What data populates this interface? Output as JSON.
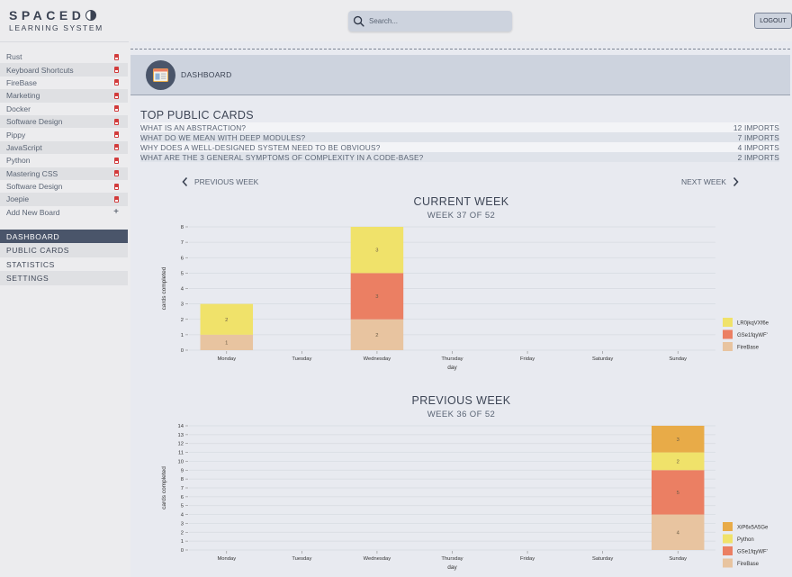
{
  "header": {
    "logo_top": "SPACED",
    "logo_bottom": "LEARNING SYSTEM",
    "search_placeholder": "Search...",
    "logout_label": "LOGOUT"
  },
  "sidebar": {
    "boards": [
      {
        "label": "Rust",
        "icon": "card-icon"
      },
      {
        "label": "Keyboard Shortcuts",
        "icon": "card-icon"
      },
      {
        "label": "FireBase",
        "icon": "card-icon"
      },
      {
        "label": "Marketing",
        "icon": "card-icon"
      },
      {
        "label": "Docker",
        "icon": "card-icon"
      },
      {
        "label": "Software Design",
        "icon": "card-icon"
      },
      {
        "label": "Pippy",
        "icon": "card-icon"
      },
      {
        "label": "JavaScript",
        "icon": "card-icon"
      },
      {
        "label": "Python",
        "icon": "card-icon"
      },
      {
        "label": "Mastering CSS",
        "icon": "card-icon"
      },
      {
        "label": "Software Design",
        "icon": "card-icon"
      },
      {
        "label": "Joepie",
        "icon": "card-icon"
      },
      {
        "label": "Add New Board",
        "icon": "plus-icon"
      }
    ],
    "nav": [
      {
        "label": "DASHBOARD",
        "active": true
      },
      {
        "label": "PUBLIC CARDS",
        "active": false
      },
      {
        "label": "STATISTICS",
        "active": false
      },
      {
        "label": "SETTINGS",
        "active": false
      }
    ]
  },
  "main": {
    "page_title": "DASHBOARD",
    "top_public_cards": {
      "title": "TOP PUBLIC CARDS",
      "rows": [
        {
          "question": "WHAT IS AN ABSTRACTION?",
          "imports": "12 IMPORTS"
        },
        {
          "question": "WHAT DO WE MEAN WITH DEEP MODULES?",
          "imports": "7 IMPORTS"
        },
        {
          "question": "WHY DOES A WELL-DESIGNED SYSTEM NEED TO BE OBVIOUS?",
          "imports": "4 IMPORTS"
        },
        {
          "question": "WHAT ARE THE 3 GENERAL SYMPTOMS OF COMPLEXITY IN A CODE-BASE?",
          "imports": "2 IMPORTS"
        }
      ]
    },
    "prev_week_label": "PREVIOUS WEEK",
    "next_week_label": "NEXT WEEK",
    "current_week_title": "CURRENT WEEK",
    "current_week_sub": "WEEK 37 OF 52",
    "previous_week_title": "PREVIOUS WEEK",
    "previous_week_sub": "WEEK 36 OF 52"
  },
  "colors": {
    "accent": "#4a556a",
    "FireBase": "#e8c4a0",
    "GSe1fqyWF": "#eb7f63",
    "LR0jkqVXf6e": "#f0e26a",
    "Python": "#f0e26a",
    "XiP6x5A5Ge": "#e8ab48"
  },
  "chart_data": [
    {
      "type": "bar",
      "stacked": true,
      "title": "",
      "xlabel": "day",
      "ylabel": "cards completed",
      "categories": [
        "Monday",
        "Tuesday",
        "Wednesday",
        "Thursday",
        "Friday",
        "Saturday",
        "Sunday"
      ],
      "ylim": [
        0,
        8
      ],
      "yticks": [
        0,
        1,
        2,
        3,
        4,
        5,
        6,
        7,
        8
      ],
      "legend_position": "right",
      "series": [
        {
          "name": "FireBase",
          "color": "#e8c4a0",
          "values": [
            1,
            0,
            2,
            0,
            0,
            0,
            0
          ]
        },
        {
          "name": "GSe1fqyWF'",
          "color": "#eb7f63",
          "values": [
            0,
            0,
            3,
            0,
            0,
            0,
            0
          ]
        },
        {
          "name": "LR0jkqVXf6e",
          "color": "#f0e26a",
          "values": [
            2,
            0,
            3,
            0,
            0,
            0,
            0
          ]
        }
      ]
    },
    {
      "type": "bar",
      "stacked": true,
      "title": "",
      "xlabel": "day",
      "ylabel": "cards completed",
      "categories": [
        "Monday",
        "Tuesday",
        "Wednesday",
        "Thursday",
        "Friday",
        "Saturday",
        "Sunday"
      ],
      "ylim": [
        0,
        14
      ],
      "yticks": [
        0,
        1,
        2,
        3,
        4,
        5,
        6,
        7,
        8,
        9,
        10,
        11,
        12,
        13,
        14
      ],
      "legend_position": "right",
      "series": [
        {
          "name": "FireBase",
          "color": "#e8c4a0",
          "values": [
            0,
            0,
            0,
            0,
            0,
            0,
            4
          ]
        },
        {
          "name": "GSe1fqyWF'",
          "color": "#eb7f63",
          "values": [
            0,
            0,
            0,
            0,
            0,
            0,
            5
          ]
        },
        {
          "name": "Python",
          "color": "#f0e26a",
          "values": [
            0,
            0,
            0,
            0,
            0,
            0,
            2
          ]
        },
        {
          "name": "XiP6x5A5Ge",
          "color": "#e8ab48",
          "values": [
            0,
            0,
            0,
            0,
            0,
            0,
            3
          ]
        }
      ]
    }
  ]
}
